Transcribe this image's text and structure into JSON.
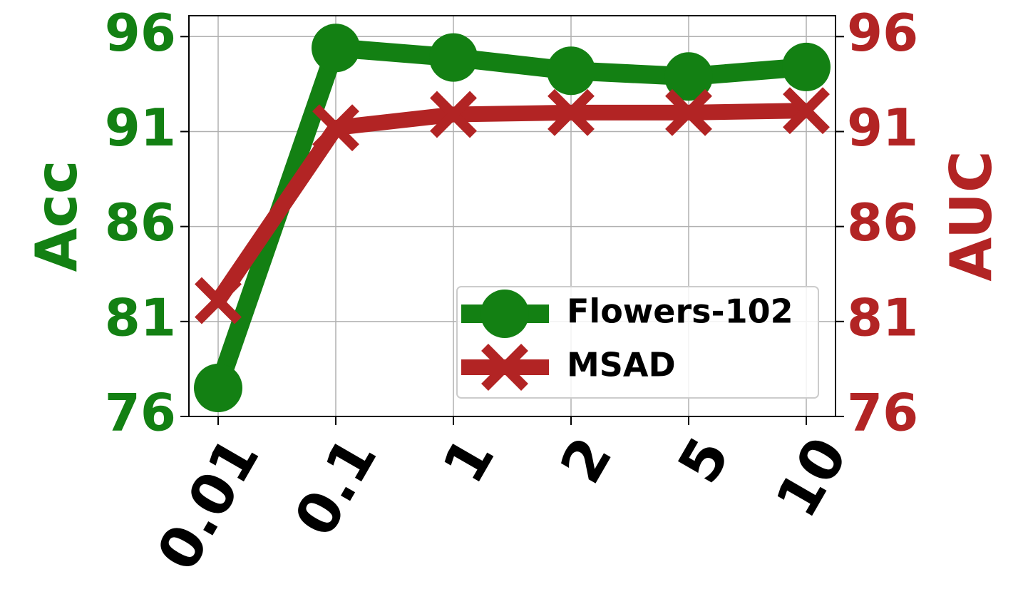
{
  "chart_data": {
    "type": "line",
    "categories": [
      "0.01",
      "0.1",
      "1",
      "2",
      "5",
      "10"
    ],
    "series": [
      {
        "name": "Flowers-102",
        "color": "#138013",
        "marker": "circle",
        "values": [
          77.5,
          95.4,
          94.9,
          94.2,
          93.9,
          94.4
        ]
      },
      {
        "name": "MSAD",
        "color": "#b22424",
        "marker": "x",
        "axis": "y2",
        "values": [
          82.1,
          91.2,
          91.9,
          92.0,
          92.0,
          92.1
        ]
      }
    ],
    "ylabel": "Acc",
    "y2label": "AUC",
    "ylim": [
      76,
      97.1
    ],
    "yticks": [
      76,
      81,
      86,
      91,
      96
    ],
    "y2lim": [
      76,
      97.1
    ],
    "y2ticks": [
      76,
      81,
      86,
      91,
      96
    ],
    "grid": true,
    "legend": "lower right"
  }
}
